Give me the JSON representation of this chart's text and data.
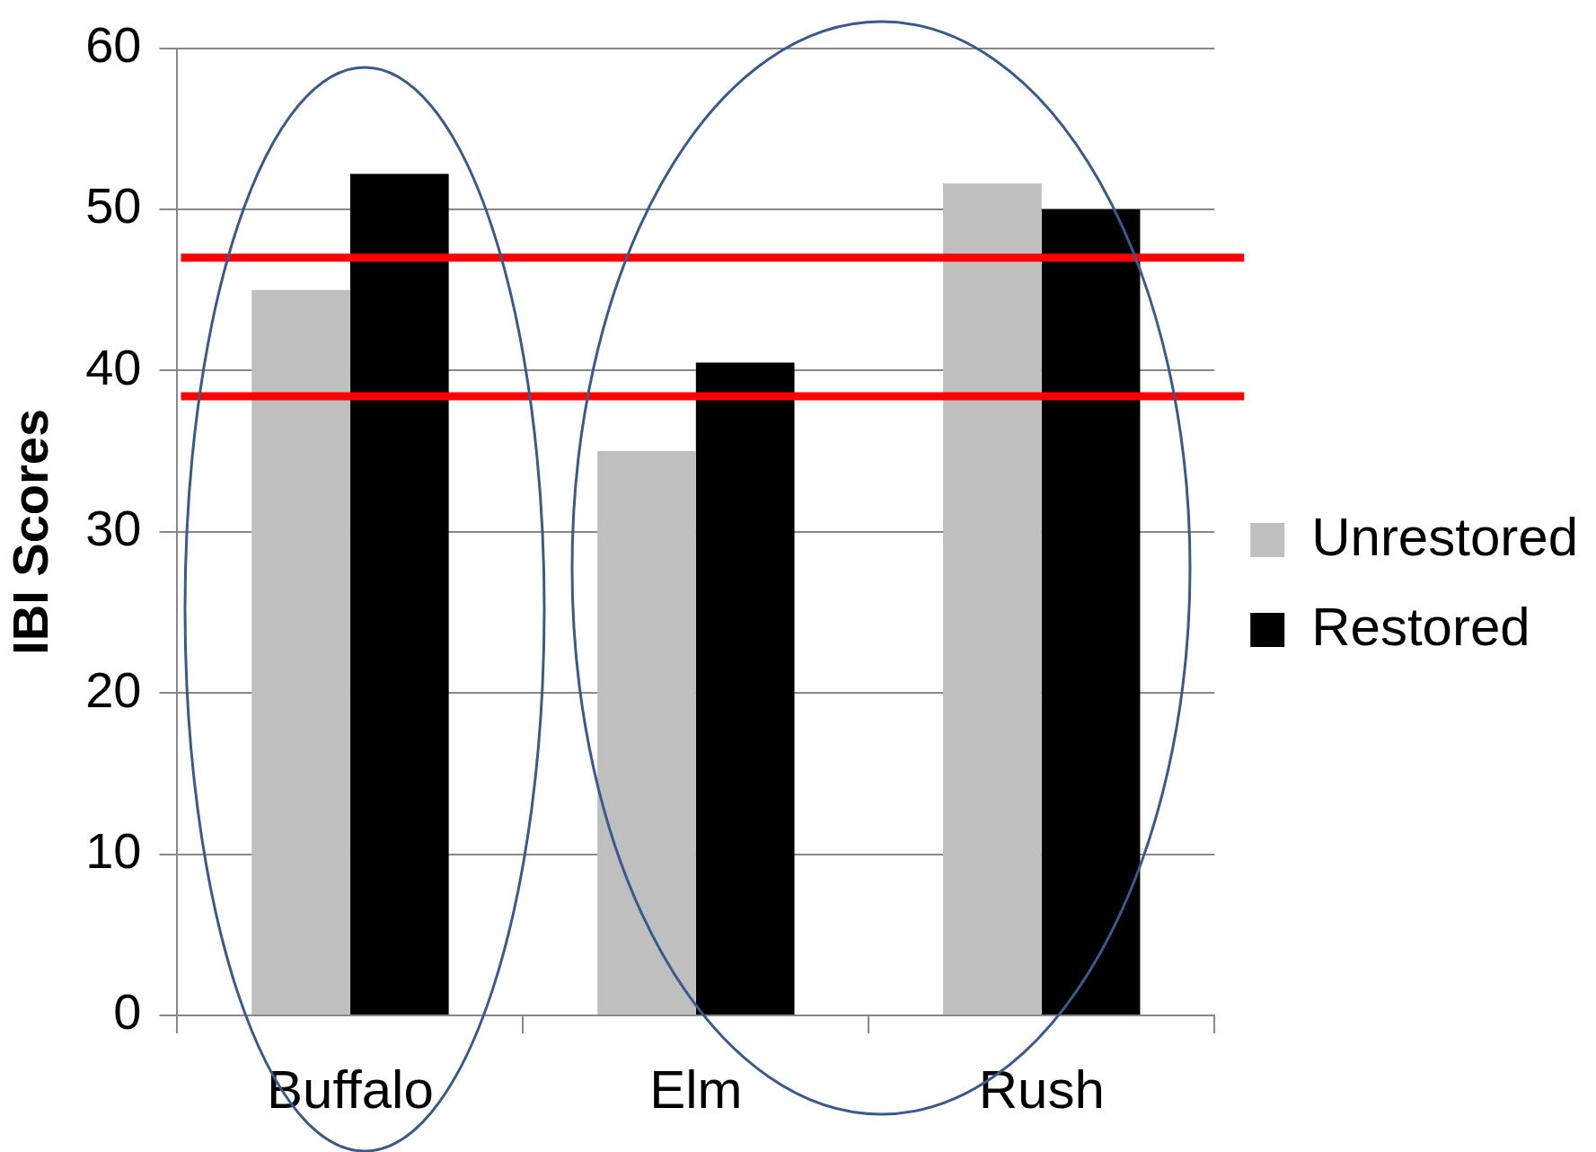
{
  "chart_data": {
    "type": "bar",
    "ylabel": "IBI Scores",
    "categories": [
      "Buffalo",
      "Elm",
      "Rush"
    ],
    "series": [
      {
        "name": "Unrestored",
        "color": "#bfbfbf",
        "values": [
          45,
          35,
          51.6
        ]
      },
      {
        "name": "Restored",
        "color": "#000000",
        "values": [
          52.2,
          40.5,
          50
        ]
      }
    ],
    "ylim": [
      0,
      60
    ],
    "yticks": [
      0,
      10,
      20,
      30,
      40,
      50,
      60
    ],
    "grid": "y",
    "legend": "right",
    "ref_lines": [
      {
        "axis": "y",
        "value": 47,
        "color": "#ff0000"
      },
      {
        "axis": "y",
        "value": 38.4,
        "color": "#ff0000"
      }
    ]
  }
}
